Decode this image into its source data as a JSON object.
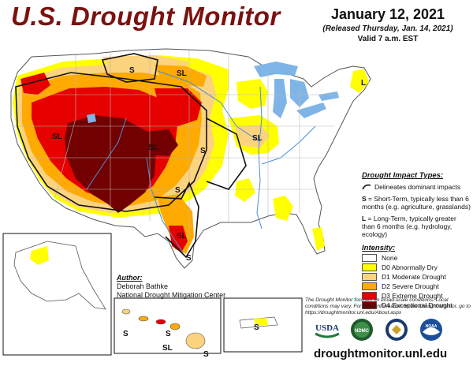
{
  "title": "U.S. Drought Monitor",
  "date": "January 12, 2021",
  "released": "(Released Thursday, Jan. 14, 2021)",
  "valid": "Valid 7 a.m. EST",
  "map_labels": {
    "s": "S",
    "sl": "SL",
    "l": "L"
  },
  "impact_types": {
    "header": "Drought Impact Types:",
    "line_label": "Delineates dominant impacts",
    "s_key": "S",
    "s_text": "= Short-Term, typically less than 6 months (e.g. agriculture, grasslands)",
    "l_key": "L",
    "l_text": "= Long-Term, typically greater than 6 months (e.g. hydrology, ecology)"
  },
  "intensity": {
    "header": "Intensity:",
    "levels": [
      {
        "label": "None",
        "color": "#ffffff"
      },
      {
        "label": "D0 Abnormally Dry",
        "color": "#ffff00"
      },
      {
        "label": "D1 Moderate Drought",
        "color": "#fcd37f"
      },
      {
        "label": "D2 Severe Drought",
        "color": "#ffaa00"
      },
      {
        "label": "D3 Extreme Drought",
        "color": "#e60000"
      },
      {
        "label": "D4 Exceptional Drought",
        "color": "#730000"
      }
    ]
  },
  "author": {
    "header": "Author:",
    "name": "Deborah Bathke",
    "org": "National Drought Mitigation Center"
  },
  "disclaimer": "The Drought Monitor focuses on broad-scale conditions. Local conditions may vary. For more information on the Drought Monitor, go to https://droughtmonitor.unl.edu/About.aspx",
  "logos": {
    "usda": "USDA",
    "ndmc": "NDMC",
    "noaa": "NOAA"
  },
  "url": "droughtmonitor.unl.edu",
  "colors": {
    "title": "#7a1210",
    "water": "#7fb5e6",
    "state_line": "#b8b8b8",
    "boundary": "#111111"
  }
}
